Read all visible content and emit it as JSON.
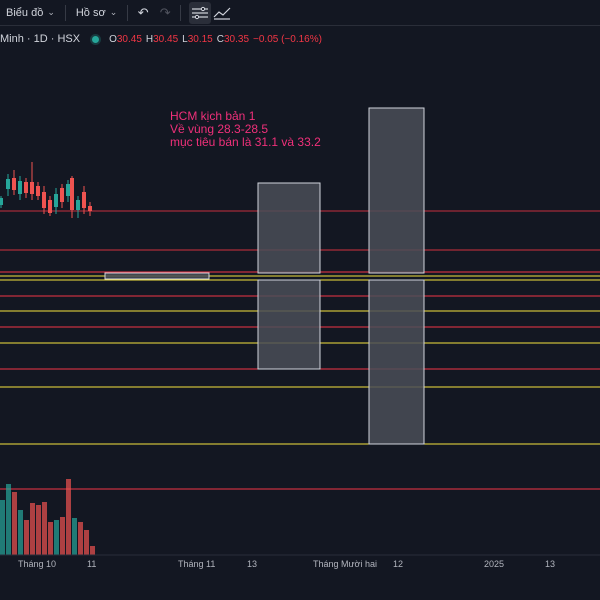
{
  "toolbar": {
    "chart_menu": "Biểu đồ",
    "profile_menu": "Hồ sơ",
    "undo_icon": "undo-icon",
    "redo_icon": "redo-icon"
  },
  "legend": {
    "symbol": "Minh · 1D · HSX",
    "open_label": "O",
    "open_value": "30.45",
    "high_label": "H",
    "high_value": "30.45",
    "low_label": "L",
    "low_value": "30.15",
    "close_label": "C",
    "close_value": "30.35",
    "change": "−0.05 (−0.16%)",
    "status_color": "#26a69a"
  },
  "annotation": {
    "line1": "HCM kịch bản 1",
    "line2": "Về vùng 28.3-28.5",
    "line3": "mục tiêu bán là 31.1 và 33.2",
    "color": "#f0307a"
  },
  "time_axis": [
    {
      "label": "Tháng 10"
    },
    {
      "label": "11"
    },
    {
      "label": "Tháng 11"
    },
    {
      "label": "13"
    },
    {
      "label": "Tháng Mười hai"
    },
    {
      "label": "12"
    },
    {
      "label": "2025"
    },
    {
      "label": "13"
    }
  ],
  "colors": {
    "up": "#26a69a",
    "down": "#ef5350",
    "level_red": "#f23645",
    "level_yellow": "#f5e33d",
    "box_fill": "#4a4d57",
    "box_stroke": "#d1d4dc"
  }
}
